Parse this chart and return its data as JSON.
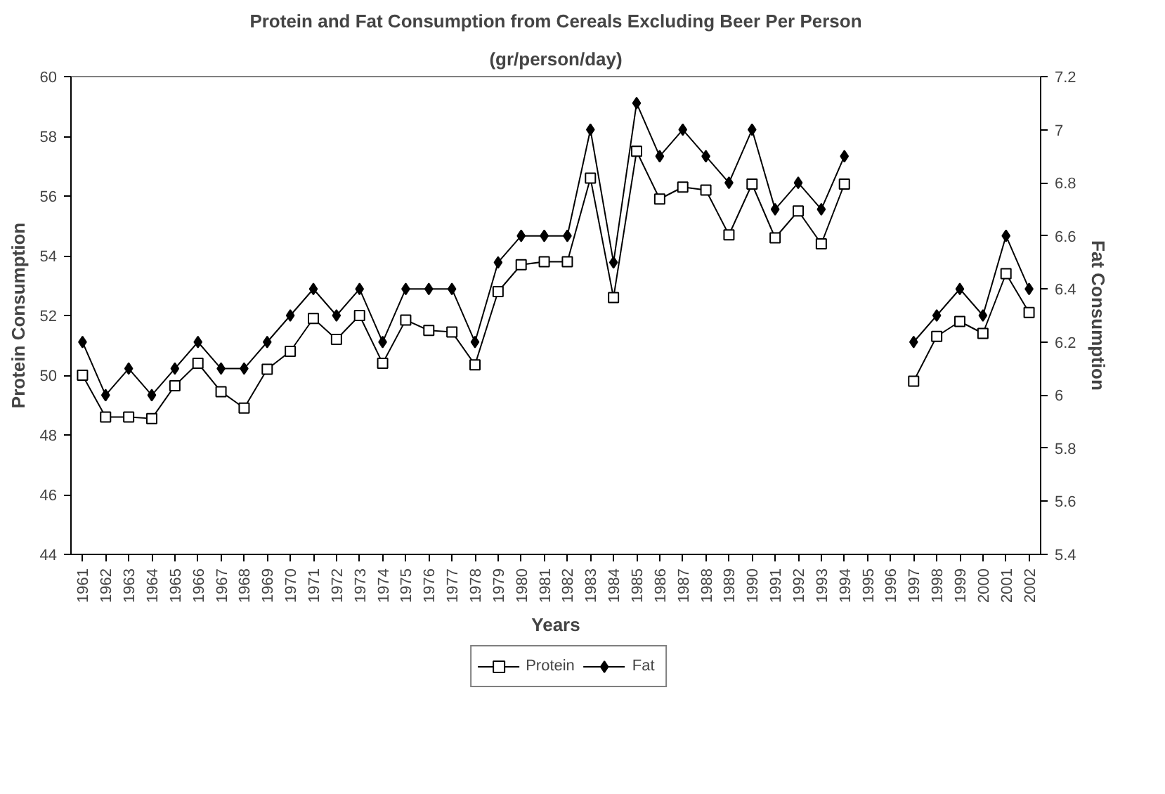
{
  "chart_data": {
    "type": "line",
    "title": "Protein and Fat Consumption from Cereals Excluding Beer Per Person",
    "subtitle": "(gr/person/day)",
    "xlabel": "Years",
    "ylabel": "Protein Consumption",
    "y2label": "Fat Consumption",
    "categories": [
      "1961",
      "1962",
      "1963",
      "1964",
      "1965",
      "1966",
      "1967",
      "1968",
      "1969",
      "1970",
      "1971",
      "1972",
      "1973",
      "1974",
      "1975",
      "1976",
      "1977",
      "1978",
      "1979",
      "1980",
      "1981",
      "1982",
      "1983",
      "1984",
      "1985",
      "1986",
      "1987",
      "1988",
      "1989",
      "1990",
      "1991",
      "1992",
      "1993",
      "1994",
      "1995",
      "1996",
      "1997",
      "1998",
      "1999",
      "2000",
      "2001",
      "2002"
    ],
    "series": [
      {
        "name": "Protein",
        "color": "#000000",
        "marker": "square",
        "values": [
          50.0,
          48.6,
          48.6,
          48.55,
          49.65,
          50.4,
          49.45,
          48.9,
          50.2,
          50.8,
          51.9,
          51.2,
          52.0,
          50.4,
          51.85,
          51.5,
          51.45,
          50.35,
          52.8,
          53.7,
          53.8,
          53.8,
          56.6,
          52.6,
          57.5,
          55.9,
          56.3,
          56.2,
          54.7,
          56.4,
          54.6,
          55.5,
          54.4,
          56.4,
          null,
          null,
          49.8,
          51.3,
          51.8,
          51.4,
          53.4,
          52.1
        ]
      },
      {
        "name": "Fat",
        "color": "#000000",
        "marker": "diamond",
        "axis": "y2",
        "values": [
          6.2,
          6.0,
          6.1,
          6.0,
          6.1,
          6.2,
          6.1,
          6.1,
          6.2,
          6.3,
          6.4,
          6.3,
          6.4,
          6.2,
          6.4,
          6.4,
          6.4,
          6.2,
          6.5,
          6.6,
          6.6,
          6.6,
          7.0,
          6.5,
          7.1,
          6.9,
          7.0,
          6.9,
          6.8,
          7.0,
          6.7,
          6.8,
          6.7,
          6.9,
          null,
          null,
          6.2,
          6.3,
          6.4,
          6.3,
          6.6,
          6.4
        ]
      }
    ],
    "ylim": [
      44,
      60
    ],
    "yticks": [
      44,
      46,
      48,
      50,
      52,
      54,
      56,
      58,
      60
    ],
    "y2lim": [
      5.4,
      7.2
    ],
    "y2ticks": [
      5.4,
      5.6,
      5.8,
      6,
      6.2,
      6.4,
      6.6,
      6.8,
      7,
      7.2
    ],
    "grid": false,
    "legend": "bottom",
    "line_style": "solid"
  }
}
